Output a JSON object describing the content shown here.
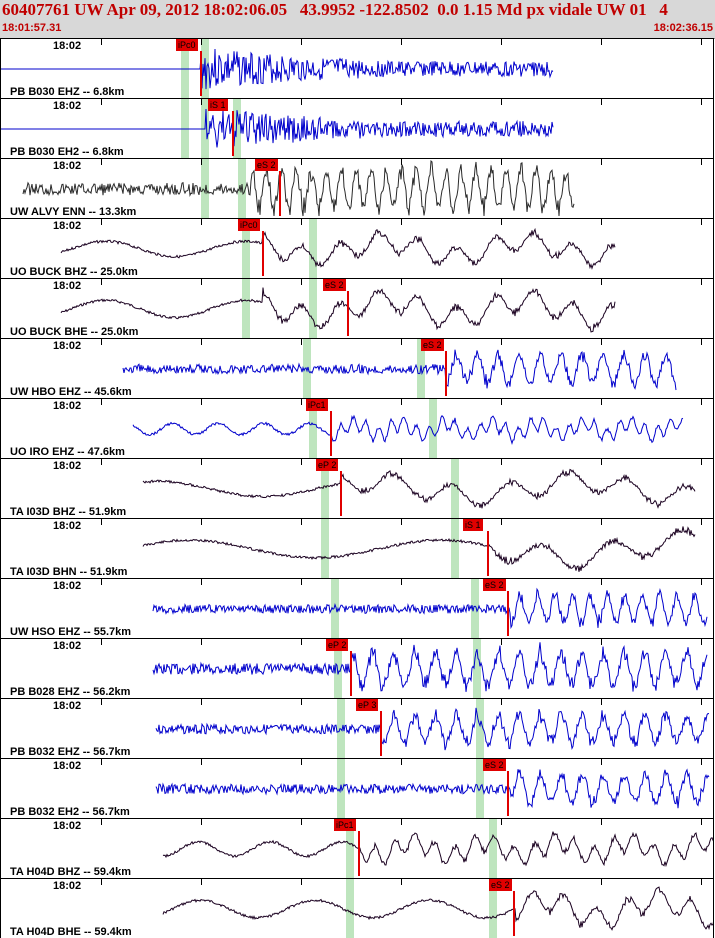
{
  "header": {
    "title": "60407761 UW Apr 09, 2012 18:02:06.05   43.9952 -122.8502  0.0 1.15 Md px vidale UW 01   4",
    "start_time": "18:01:57.31",
    "end_time": "18:02:36.15"
  },
  "colors": {
    "header_bg": "#d8d8d8",
    "header_text": "#c00000",
    "pick": "#e00000",
    "band": "#a8dca8",
    "trace_blue": "#0000cc",
    "trace_dark": "#2a2a2a",
    "trace_purple": "#1a0020"
  },
  "traces": [
    {
      "label": "PB B030 EHZ -- 6.8km",
      "time": "18:02",
      "color": "blue",
      "style": "flat",
      "start": 0,
      "end": 552,
      "onset": 200,
      "amp": 14,
      "freq": 0.9,
      "pick": {
        "text": "iPc0",
        "pos": 175
      },
      "bands": [
        180,
        200
      ]
    },
    {
      "label": "PB B030 EH2 -- 6.8km",
      "time": "18:02",
      "color": "blue",
      "style": "flat",
      "start": 0,
      "end": 552,
      "onset": 205,
      "amp": 14,
      "freq": 0.9,
      "pick": {
        "text": "iS 1",
        "pos": 207
      },
      "bands": [
        180,
        200,
        232
      ]
    },
    {
      "label": "UW ALVY ENN -- 13.3km",
      "time": "18:02",
      "color": "dark",
      "style": "noise",
      "start": 22,
      "end": 573,
      "onset": 250,
      "amp": 16,
      "freq": 1.4,
      "pick": {
        "text": "eS 2",
        "pos": 254
      },
      "bands": [
        200,
        237
      ]
    },
    {
      "label": "UO BUCK BHZ -- 25.0km",
      "time": "18:02",
      "color": "purple",
      "style": "wave",
      "start": 60,
      "end": 614,
      "onset": 262,
      "amp": 14,
      "freq": 0.18,
      "pick": {
        "text": "iPc0",
        "pos": 237
      },
      "bands": [
        241,
        308
      ]
    },
    {
      "label": "UO BUCK BHE -- 25.0km",
      "time": "18:02",
      "color": "purple",
      "style": "wave",
      "start": 60,
      "end": 614,
      "onset": 262,
      "amp": 16,
      "freq": 0.18,
      "pick": {
        "text": "eS 2",
        "pos": 322
      },
      "bands": [
        241,
        308
      ]
    },
    {
      "label": "UW HBO EHZ -- 45.6km",
      "time": "18:02",
      "color": "blue",
      "style": "noise",
      "start": 122,
      "end": 675,
      "onset": 445,
      "amp": 12,
      "freq": 1.0,
      "pick": {
        "text": "eS 2",
        "pos": 420
      },
      "bands": [
        302,
        416
      ]
    },
    {
      "label": "UO IRO EHZ -- 47.6km",
      "time": "18:02",
      "color": "blue",
      "style": "wave",
      "start": 132,
      "end": 682,
      "onset": 330,
      "amp": 10,
      "freq": 0.55,
      "pick": {
        "text": "iPc1",
        "pos": 305
      },
      "bands": [
        308,
        428
      ]
    },
    {
      "label": "TA I03D BHZ -- 51.9km",
      "time": "18:02",
      "color": "purple",
      "style": "wave",
      "start": 142,
      "end": 694,
      "onset": 340,
      "amp": 14,
      "freq": 0.12,
      "pick": {
        "text": "eP 2",
        "pos": 315
      },
      "bands": [
        320,
        450
      ]
    },
    {
      "label": "TA I03D BHN -- 51.9km",
      "time": "18:02",
      "color": "purple",
      "style": "wave",
      "start": 142,
      "end": 694,
      "onset": 490,
      "amp": 16,
      "freq": 0.1,
      "pick": {
        "text": "iS 1",
        "pos": 462
      },
      "bands": [
        320,
        450
      ]
    },
    {
      "label": "UW HSO EHZ -- 55.7km",
      "time": "18:02",
      "color": "blue",
      "style": "noise",
      "start": 152,
      "end": 706,
      "onset": 510,
      "amp": 11,
      "freq": 1.2,
      "pick": {
        "text": "eS 2",
        "pos": 482
      },
      "bands": [
        330,
        470
      ]
    },
    {
      "label": "PB B028 EHZ -- 56.2km",
      "time": "18:02",
      "color": "blue",
      "style": "noise",
      "start": 152,
      "end": 706,
      "onset": 350,
      "amp": 14,
      "freq": 1.0,
      "pick": {
        "text": "eP 2",
        "pos": 325
      },
      "bands": [
        333,
        472
      ]
    },
    {
      "label": "PB B032 EHZ -- 56.7km",
      "time": "18:02",
      "color": "blue",
      "style": "noise",
      "start": 155,
      "end": 708,
      "onset": 380,
      "amp": 12,
      "freq": 1.0,
      "pick": {
        "text": "eP 3",
        "pos": 355
      },
      "bands": [
        336,
        475
      ]
    },
    {
      "label": "PB B032 EH2 -- 56.7km",
      "time": "18:02",
      "color": "blue",
      "style": "noise",
      "start": 155,
      "end": 708,
      "onset": 510,
      "amp": 12,
      "freq": 1.0,
      "pick": {
        "text": "eS 2",
        "pos": 482
      },
      "bands": [
        336,
        475
      ]
    },
    {
      "label": "TA H04D BHZ -- 59.4km",
      "time": "18:02",
      "color": "purple",
      "style": "wave",
      "start": 162,
      "end": 714,
      "onset": 360,
      "amp": 13,
      "freq": 0.35,
      "pick": {
        "text": "iPc1",
        "pos": 333
      },
      "bands": [
        345,
        488
      ]
    },
    {
      "label": "TA H04D BHE -- 59.4km",
      "time": "18:02",
      "color": "purple",
      "style": "wave",
      "start": 162,
      "end": 714,
      "onset": 515,
      "amp": 16,
      "freq": 0.22,
      "pick": {
        "text": "eS 2",
        "pos": 488
      },
      "bands": [
        345,
        488
      ]
    }
  ]
}
